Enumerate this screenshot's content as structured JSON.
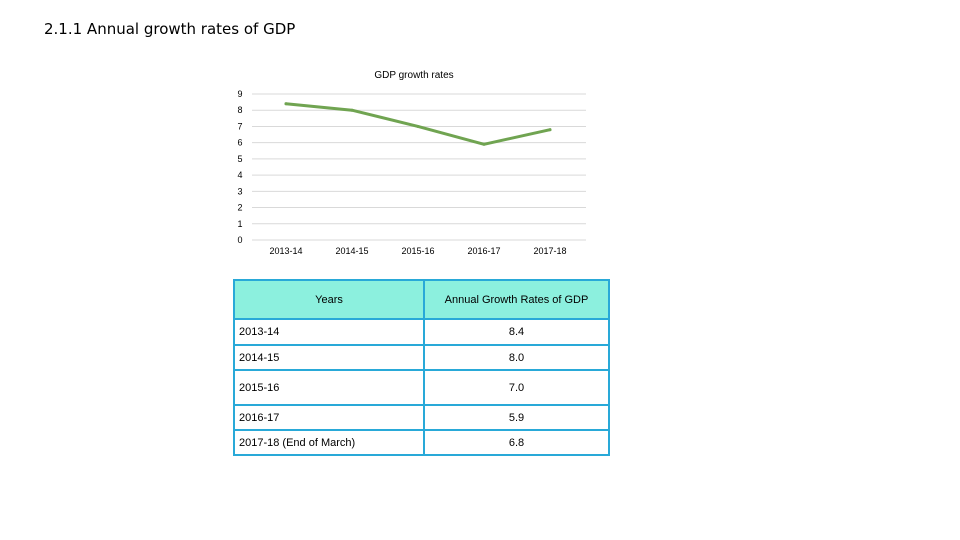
{
  "slide": {
    "title": "2.1.1 Annual growth rates of GDP"
  },
  "chart_data": {
    "type": "line",
    "title": "GDP growth rates",
    "categories": [
      "2013-14",
      "2014-15",
      "2015-16",
      "2016-17",
      "2017-18"
    ],
    "series": [
      {
        "values": [
          8.4,
          8.0,
          7.0,
          5.9,
          6.8
        ],
        "color": "#70a451"
      }
    ],
    "ylim": [
      0,
      9
    ],
    "yticks": [
      0,
      1,
      2,
      3,
      4,
      5,
      6,
      7,
      8,
      9
    ],
    "grid": true,
    "legend": "none"
  },
  "table": {
    "headers": [
      "Years",
      "Annual Growth Rates of GDP"
    ],
    "rows": [
      {
        "year": "2013-14",
        "value": "8.4"
      },
      {
        "year": "2014-15",
        "value": "8.0"
      },
      {
        "year": "2015-16",
        "value": "7.0"
      },
      {
        "year": "2016-17",
        "value": "5.9"
      },
      {
        "year": "2017-18 (End of March)",
        "value": "6.8"
      }
    ],
    "header_color": "#8cf0de",
    "border_color": "#29a9d8"
  }
}
